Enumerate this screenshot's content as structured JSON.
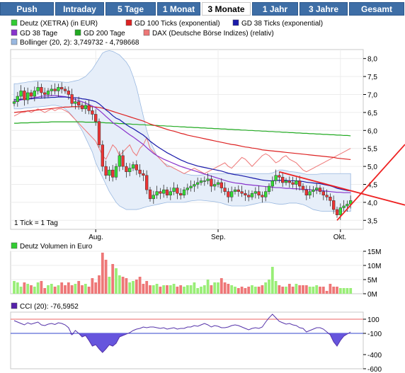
{
  "tabs": [
    "Push",
    "Intraday",
    "5 Tage",
    "1 Monat",
    "3 Monate",
    "1 Jahr",
    "3 Jahre",
    "Gesamt"
  ],
  "active_tab": "3 Monate",
  "legend": [
    {
      "label": "Deutz (XETRA) (in EUR)",
      "color": "#33cc33"
    },
    {
      "label": "GD 100 Ticks (exponential)",
      "color": "#dd2222"
    },
    {
      "label": "GD 38 Ticks (exponential)",
      "color": "#1a1aaa"
    },
    {
      "label": "GD 38 Tage",
      "color": "#8833cc"
    },
    {
      "label": "GD 200 Tage",
      "color": "#22aa22"
    },
    {
      "label": "DAX (Deutsche Börse Indizes) (relativ)",
      "color": "#ee7777"
    },
    {
      "label": "Bollinger (20, 2): 3,749732 - 4,798668",
      "color": "#99b8e0"
    }
  ],
  "tick_note": "1 Tick = 1 Tag",
  "volume_title": "Deutz Volumen in Euro",
  "cci_title": "CCI (20): -76,5952",
  "colors": {
    "up": "#33dd33",
    "down": "#ee3333",
    "volume_up": "#99ee77",
    "volume_down": "#ee7777",
    "tab": "#3e6ea6",
    "bollinger_fill": "#e6eef9",
    "cci_fill": "#6655dd"
  },
  "chart_data": [
    {
      "type": "candlestick",
      "ylim": [
        3.25,
        8.25
      ],
      "yticks": [
        "3,5",
        "4,0",
        "4,5",
        "5,0",
        "5,5",
        "6,0",
        "6,5",
        "7,0",
        "7,5",
        "8,0"
      ],
      "ytick_values": [
        3.5,
        4.0,
        4.5,
        5.0,
        5.5,
        6.0,
        6.5,
        7.0,
        7.5,
        8.0
      ],
      "x_tick_labels": [
        "Aug.",
        "Sep.",
        "Okt."
      ],
      "x_tick_index": [
        24,
        60,
        96
      ],
      "closes": [
        6.8,
        6.95,
        7.1,
        6.85,
        7.05,
        6.95,
        7.1,
        7.2,
        7.05,
        7.0,
        7.1,
        7.15,
        7.1,
        7.2,
        7.15,
        7.1,
        7.0,
        6.75,
        6.8,
        6.7,
        6.6,
        6.7,
        6.55,
        6.45,
        6.25,
        5.6,
        5.0,
        4.75,
        4.9,
        4.7,
        5.0,
        5.3,
        5.0,
        4.85,
        4.95,
        5.05,
        4.9,
        4.8,
        4.75,
        4.35,
        4.1,
        4.2,
        4.3,
        4.25,
        4.35,
        4.2,
        4.3,
        4.4,
        4.25,
        4.2,
        4.35,
        4.4,
        4.45,
        4.5,
        4.55,
        4.6,
        4.6,
        4.65,
        4.45,
        4.5,
        4.55,
        4.4,
        4.3,
        4.15,
        4.3,
        4.35,
        4.3,
        4.25,
        4.2,
        4.15,
        4.25,
        4.3,
        4.2,
        4.15,
        4.3,
        4.45,
        4.6,
        4.75,
        4.7,
        4.55,
        4.6,
        4.55,
        4.5,
        4.6,
        4.45,
        4.35,
        4.2,
        4.3,
        4.35,
        4.4,
        4.3,
        4.2,
        4.15,
        4.05,
        3.8,
        3.65,
        3.85,
        3.9,
        3.95,
        4.05
      ],
      "sma_38_days": [
        6.8,
        6.82,
        6.85,
        6.87,
        6.88,
        6.9,
        6.92,
        6.93,
        6.95,
        6.96,
        6.96,
        6.97,
        6.97,
        6.96,
        6.95,
        6.94,
        6.92,
        6.89,
        6.86,
        6.83,
        6.8,
        6.76,
        6.72,
        6.68,
        6.63,
        6.56,
        6.48,
        6.39,
        6.31,
        6.22,
        6.15,
        6.09,
        6.02,
        5.95,
        5.88,
        5.82,
        5.75,
        5.68,
        5.61,
        5.52,
        5.44,
        5.36,
        5.3,
        5.25,
        5.2,
        5.16,
        5.12,
        5.08,
        5.04,
        5.0,
        4.97,
        4.94,
        4.91,
        4.88,
        4.85,
        4.82,
        4.79,
        4.76,
        4.73,
        4.7,
        4.67,
        4.64,
        4.61,
        4.58,
        4.56,
        4.54,
        4.53,
        4.52,
        4.5,
        4.49,
        4.48,
        4.47,
        4.46,
        4.45,
        4.44,
        4.43,
        4.42,
        4.41,
        4.41,
        4.4,
        4.39,
        4.39,
        4.38,
        4.38,
        4.37,
        4.36,
        4.36,
        4.35,
        4.34,
        4.34,
        4.33,
        4.32,
        4.31,
        4.3,
        4.29,
        4.28,
        4.28,
        4.27,
        4.27,
        4.27
      ],
      "ema_38_ticks": [
        6.85,
        6.86,
        6.87,
        6.87,
        6.88,
        6.88,
        6.89,
        6.9,
        6.9,
        6.91,
        6.91,
        6.92,
        6.92,
        6.93,
        6.93,
        6.93,
        6.92,
        6.91,
        6.91,
        6.9,
        6.88,
        6.87,
        6.85,
        6.83,
        6.8,
        6.74,
        6.66,
        6.57,
        6.5,
        6.41,
        6.34,
        6.3,
        6.23,
        6.16,
        6.1,
        6.05,
        5.99,
        5.93,
        5.87,
        5.79,
        5.7,
        5.63,
        5.56,
        5.5,
        5.44,
        5.38,
        5.33,
        5.28,
        5.23,
        5.18,
        5.14,
        5.1,
        5.07,
        5.04,
        5.01,
        4.99,
        4.97,
        4.95,
        4.93,
        4.91,
        4.89,
        4.87,
        4.84,
        4.81,
        4.79,
        4.77,
        4.76,
        4.74,
        4.72,
        4.7,
        4.68,
        4.66,
        4.64,
        4.62,
        4.61,
        4.6,
        4.6,
        4.61,
        4.61,
        4.61,
        4.61,
        4.6,
        4.6,
        4.6,
        4.59,
        4.58,
        4.56,
        4.55,
        4.54,
        4.53,
        4.52,
        4.5,
        4.48,
        4.46,
        4.43,
        4.39,
        4.37,
        4.35,
        4.33,
        4.32
      ],
      "ema_100_ticks": [
        6.5,
        6.51,
        6.52,
        6.53,
        6.54,
        6.55,
        6.56,
        6.57,
        6.58,
        6.59,
        6.6,
        6.61,
        6.62,
        6.63,
        6.64,
        6.65,
        6.65,
        6.66,
        6.66,
        6.66,
        6.66,
        6.66,
        6.66,
        6.66,
        6.65,
        6.64,
        6.62,
        6.59,
        6.56,
        6.53,
        6.5,
        6.47,
        6.44,
        6.41,
        6.38,
        6.35,
        6.32,
        6.29,
        6.26,
        6.22,
        6.18,
        6.15,
        6.12,
        6.09,
        6.06,
        6.03,
        6.0,
        5.98,
        5.95,
        5.92,
        5.9,
        5.87,
        5.85,
        5.83,
        5.81,
        5.79,
        5.77,
        5.75,
        5.73,
        5.71,
        5.69,
        5.67,
        5.65,
        5.63,
        5.61,
        5.6,
        5.58,
        5.56,
        5.54,
        5.53,
        5.51,
        5.5,
        5.48,
        5.46,
        5.45,
        5.44,
        5.43,
        5.42,
        5.41,
        5.4,
        5.39,
        5.38,
        5.37,
        5.36,
        5.35,
        5.34,
        5.33,
        5.32,
        5.31,
        5.3,
        5.29,
        5.28,
        5.27,
        5.26,
        5.25,
        5.23,
        5.22,
        5.21,
        5.2,
        5.19
      ],
      "sma_200_days": [
        6.2,
        6.2,
        6.21,
        6.21,
        6.21,
        6.22,
        6.22,
        6.22,
        6.23,
        6.23,
        6.23,
        6.24,
        6.24,
        6.24,
        6.24,
        6.24,
        6.24,
        6.24,
        6.24,
        6.24,
        6.24,
        6.23,
        6.23,
        6.23,
        6.23,
        6.22,
        6.22,
        6.21,
        6.21,
        6.2,
        6.2,
        6.19,
        6.19,
        6.18,
        6.18,
        6.17,
        6.17,
        6.16,
        6.16,
        6.15,
        6.15,
        6.14,
        6.14,
        6.13,
        6.13,
        6.12,
        6.12,
        6.11,
        6.11,
        6.1,
        6.1,
        6.09,
        6.09,
        6.08,
        6.08,
        6.07,
        6.07,
        6.06,
        6.06,
        6.05,
        6.05,
        6.04,
        6.04,
        6.03,
        6.03,
        6.02,
        6.02,
        6.01,
        6.01,
        6.0,
        6.0,
        5.99,
        5.99,
        5.98,
        5.98,
        5.97,
        5.97,
        5.96,
        5.96,
        5.95,
        5.95,
        5.94,
        5.94,
        5.93,
        5.93,
        5.92,
        5.92,
        5.91,
        5.91,
        5.9,
        5.9,
        5.89,
        5.89,
        5.88,
        5.88,
        5.87,
        5.87,
        5.86,
        5.86,
        5.85
      ],
      "dax_relative": [
        6.4,
        6.45,
        6.5,
        6.5,
        6.55,
        6.5,
        6.55,
        6.6,
        6.55,
        6.5,
        6.55,
        6.6,
        6.55,
        6.6,
        6.6,
        6.55,
        6.5,
        6.4,
        6.3,
        6.2,
        6.1,
        6.0,
        5.9,
        5.8,
        5.7,
        5.5,
        5.3,
        5.2,
        5.4,
        5.6,
        5.5,
        5.3,
        5.4,
        5.5,
        5.6,
        5.4,
        5.3,
        5.5,
        5.6,
        5.8,
        5.5,
        5.4,
        5.3,
        5.2,
        5.1,
        5.0,
        5.0,
        4.95,
        4.9,
        4.85,
        4.8,
        4.85,
        4.9,
        4.95,
        4.9,
        4.85,
        4.8,
        4.85,
        4.9,
        4.95,
        5.0,
        5.05,
        5.1,
        5.0,
        4.95,
        5.05,
        5.15,
        5.25,
        5.2,
        5.1,
        5.0,
        5.1,
        5.2,
        5.3,
        5.35,
        5.3,
        5.2,
        5.1,
        5.15,
        5.25,
        5.3,
        5.2,
        5.15,
        5.1,
        5.0,
        4.9,
        4.85,
        4.9,
        4.95,
        5.0,
        5.05,
        5.1,
        5.15,
        5.2,
        5.25,
        5.3,
        5.35,
        5.4,
        5.45,
        5.5
      ],
      "bollinger_upper": [
        7.3,
        7.3,
        7.32,
        7.33,
        7.35,
        7.36,
        7.37,
        7.38,
        7.38,
        7.38,
        7.38,
        7.37,
        7.36,
        7.36,
        7.35,
        7.34,
        7.34,
        7.36,
        7.38,
        7.4,
        7.45,
        7.5,
        7.6,
        7.7,
        7.85,
        8.0,
        8.15,
        8.2,
        8.22,
        8.2,
        8.15,
        8.1,
        8.0,
        7.9,
        7.75,
        7.5,
        7.2,
        6.8,
        6.4,
        6.0,
        5.7,
        5.5,
        5.3,
        5.2,
        5.1,
        5.05,
        5.0,
        4.95,
        4.9,
        4.85,
        4.8,
        4.78,
        4.76,
        4.75,
        4.75,
        4.76,
        4.77,
        4.78,
        4.8,
        4.8,
        4.8,
        4.8,
        4.8,
        4.8,
        4.8,
        4.8,
        4.8,
        4.8,
        4.8,
        4.8,
        4.8,
        4.8,
        4.8,
        4.8,
        4.8,
        4.8,
        4.82,
        4.86,
        4.9,
        4.9,
        4.88,
        4.86,
        4.85,
        4.84,
        4.82,
        4.8,
        4.78,
        4.78,
        4.78,
        4.78,
        4.79,
        4.8,
        4.8,
        4.8,
        4.8,
        4.8,
        4.8,
        4.8,
        4.8,
        4.8
      ],
      "bollinger_lower": [
        6.6,
        6.6,
        6.6,
        6.62,
        6.63,
        6.63,
        6.65,
        6.65,
        6.66,
        6.67,
        6.68,
        6.7,
        6.7,
        6.68,
        6.66,
        6.6,
        6.52,
        6.42,
        6.3,
        6.15,
        6.0,
        5.8,
        5.6,
        5.4,
        5.1,
        4.9,
        4.7,
        4.5,
        4.3,
        4.15,
        4.0,
        3.9,
        3.85,
        3.8,
        3.8,
        3.8,
        3.8,
        3.82,
        3.85,
        3.88,
        3.9,
        3.92,
        3.94,
        3.96,
        3.98,
        4.0,
        4.0,
        4.0,
        4.0,
        4.0,
        4.0,
        4.02,
        4.04,
        4.05,
        4.06,
        4.06,
        4.05,
        4.04,
        4.03,
        4.02,
        4.0,
        3.98,
        3.95,
        3.92,
        3.9,
        3.9,
        3.9,
        3.9,
        3.9,
        3.92,
        3.94,
        3.96,
        3.98,
        4.0,
        4.0,
        4.0,
        3.98,
        3.96,
        3.95,
        3.95,
        3.96,
        3.98,
        3.98,
        3.98,
        3.96,
        3.94,
        3.9,
        3.85,
        3.8,
        3.78,
        3.76,
        3.75,
        3.75,
        3.75,
        3.75,
        3.75,
        3.75,
        3.75,
        3.75,
        3.75
      ],
      "trendlines": [
        {
          "from": [
            78,
            4.85
          ],
          "to": [
            104,
            4.2
          ],
          "color": "#ee2222"
        },
        {
          "from": [
            95,
            3.5
          ],
          "to": [
            104,
            4.45
          ],
          "color": "#ee2222"
        }
      ]
    },
    {
      "type": "bar",
      "ylim": [
        0,
        15
      ],
      "yticks": [
        "0M",
        "5M",
        "10M",
        "15M"
      ],
      "ytick_values": [
        0,
        5,
        10,
        15
      ],
      "values": [
        4.5,
        4.0,
        2.5,
        4.0,
        3.5,
        3.0,
        2.5,
        4.0,
        4.5,
        2.0,
        3.0,
        3.5,
        2.5,
        3.0,
        4.0,
        3.0,
        4.0,
        3.0,
        3.5,
        4.5,
        3.0,
        3.5,
        2.5,
        5.5,
        4.0,
        6.5,
        14.5,
        12.0,
        6.0,
        10.5,
        9.0,
        6.5,
        6.0,
        5.5,
        4.0,
        4.5,
        5.0,
        6.0,
        3.5,
        4.5,
        3.0,
        3.0,
        3.5,
        2.5,
        3.0,
        3.0,
        3.0,
        3.5,
        2.5,
        3.0,
        2.5,
        3.0,
        3.0,
        4.0,
        2.0,
        2.5,
        3.0,
        5.0,
        3.0,
        4.0,
        4.0,
        5.5,
        4.0,
        3.5,
        3.0,
        2.5,
        2.0,
        2.5,
        2.0,
        2.5,
        3.0,
        2.5,
        2.5,
        3.0,
        4.0,
        5.0,
        9.5,
        4.5,
        3.0,
        2.5,
        2.5,
        3.5,
        2.5,
        3.5,
        3.0,
        3.0,
        3.0,
        2.5,
        2.5,
        3.0,
        2.5,
        2.5,
        1.0,
        3.5,
        2.5,
        2.5,
        2.0,
        2.0,
        2.0,
        2.0
      ]
    },
    {
      "type": "line",
      "ylim": [
        -600,
        200
      ],
      "yticks": [
        "100",
        "-100",
        "-400",
        "-600"
      ],
      "ytick_values": [
        100,
        -100,
        -400,
        -600
      ],
      "values": [
        80,
        60,
        40,
        20,
        50,
        30,
        45,
        60,
        20,
        10,
        30,
        40,
        25,
        50,
        40,
        20,
        -20,
        -120,
        -60,
        -100,
        -150,
        -130,
        -200,
        -280,
        -260,
        -320,
        -370,
        -320,
        -260,
        -280,
        -240,
        -150,
        -130,
        -110,
        -90,
        -60,
        -40,
        -30,
        -10,
        -20,
        -10,
        -10,
        -20,
        -30,
        -20,
        -40,
        -30,
        -20,
        -40,
        -30,
        -30,
        -10,
        -10,
        10,
        0,
        20,
        40,
        20,
        -10,
        10,
        0,
        -20,
        -20,
        -10,
        10,
        20,
        10,
        -10,
        -30,
        -50,
        -30,
        -20,
        -30,
        -10,
        60,
        120,
        170,
        120,
        70,
        50,
        30,
        40,
        20,
        10,
        -20,
        -30,
        -80,
        -60,
        -40,
        -20,
        -20,
        -40,
        -80,
        -120,
        -220,
        -280,
        -200,
        -140,
        -110,
        -80
      ],
      "ref_lines": [
        100,
        -100
      ]
    }
  ]
}
